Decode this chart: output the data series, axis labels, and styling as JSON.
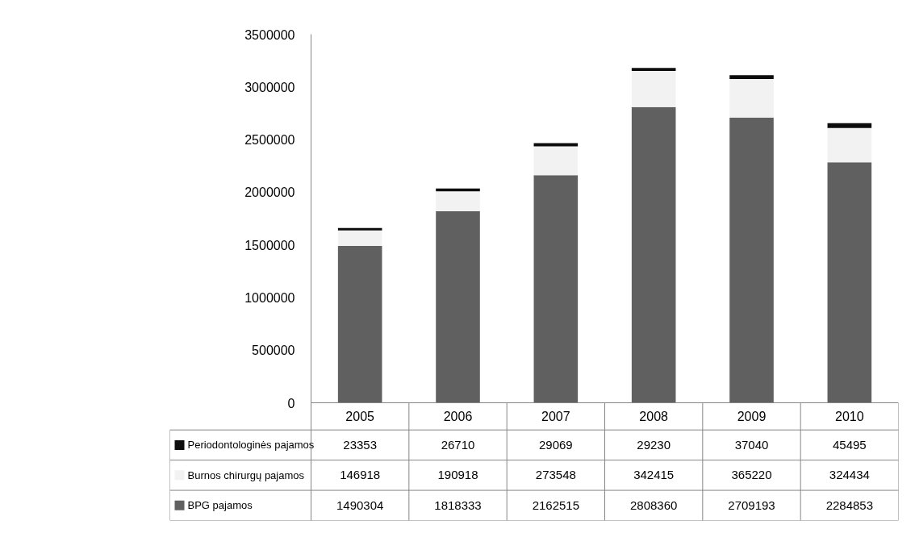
{
  "chart_data": {
    "type": "bar",
    "stacked": true,
    "data_labels": true,
    "legend": "bottom left",
    "grid": false,
    "categories": [
      "2005",
      "2006",
      "2007",
      "2008",
      "2009",
      "2010"
    ],
    "series": [
      {
        "name": "BPG pajamos",
        "color": "#606060",
        "values": [
          1490304,
          1818333,
          2162515,
          2808360,
          2709193,
          2284853
        ]
      },
      {
        "name": "Burnos chirurgų pajamos",
        "color": "#f2f2f2",
        "values": [
          146918,
          190918,
          273548,
          342415,
          365220,
          324434
        ]
      },
      {
        "name": "Periodontologinės pajamos",
        "color": "#0d0d0d",
        "values": [
          23353,
          26710,
          29069,
          29230,
          37040,
          45495
        ]
      }
    ],
    "ylim": [
      0,
      3500000
    ],
    "yticks": [
      0,
      500000,
      1000000,
      1500000,
      2000000,
      2500000,
      3000000,
      3500000
    ]
  }
}
